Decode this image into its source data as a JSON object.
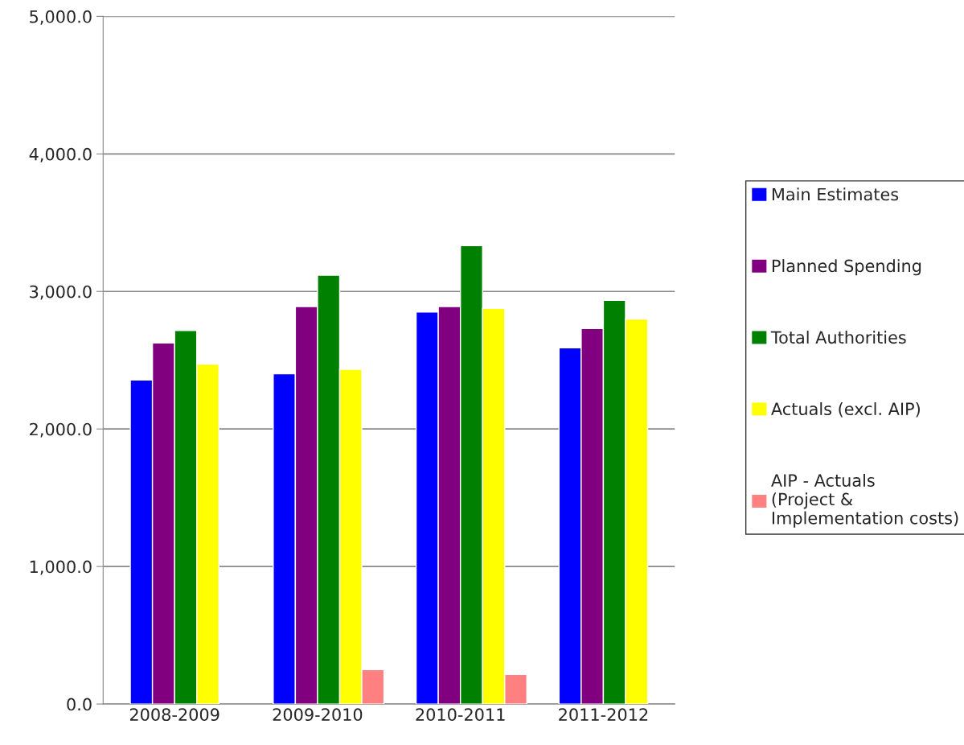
{
  "chart_data": {
    "type": "bar",
    "categories": [
      "2008-2009",
      "2009-2010",
      "2010-2011",
      "2011-2012"
    ],
    "series": [
      {
        "name": "Main Estimates",
        "color": "#0000ff",
        "values": [
          2356,
          2402,
          2850,
          2590
        ]
      },
      {
        "name": "Planned Spending",
        "color": "#800080",
        "values": [
          2625,
          2890,
          2890,
          2730
        ]
      },
      {
        "name": "Total Authorities",
        "color": "#008000",
        "values": [
          2716,
          3118,
          3333,
          2935
        ]
      },
      {
        "name": "Actuals (excl. AIP)",
        "color": "#ffff00",
        "values": [
          2472,
          2434,
          2877,
          2800
        ]
      },
      {
        "name": "AIP - Actuals (Project & Implementation costs)",
        "color": "#ff8080",
        "values": [
          null,
          250,
          215,
          null
        ]
      }
    ],
    "ylim": [
      0,
      5000
    ],
    "yticks": [
      {
        "value": 0,
        "label": "0.0"
      },
      {
        "value": 1000,
        "label": "1,000.0"
      },
      {
        "value": 2000,
        "label": "2,000.0"
      },
      {
        "value": 3000,
        "label": "3,000.0"
      },
      {
        "value": 4000,
        "label": "4,000.0"
      },
      {
        "value": 5000,
        "label": "5,000.0"
      }
    ],
    "grid": "y",
    "legend": "right"
  }
}
